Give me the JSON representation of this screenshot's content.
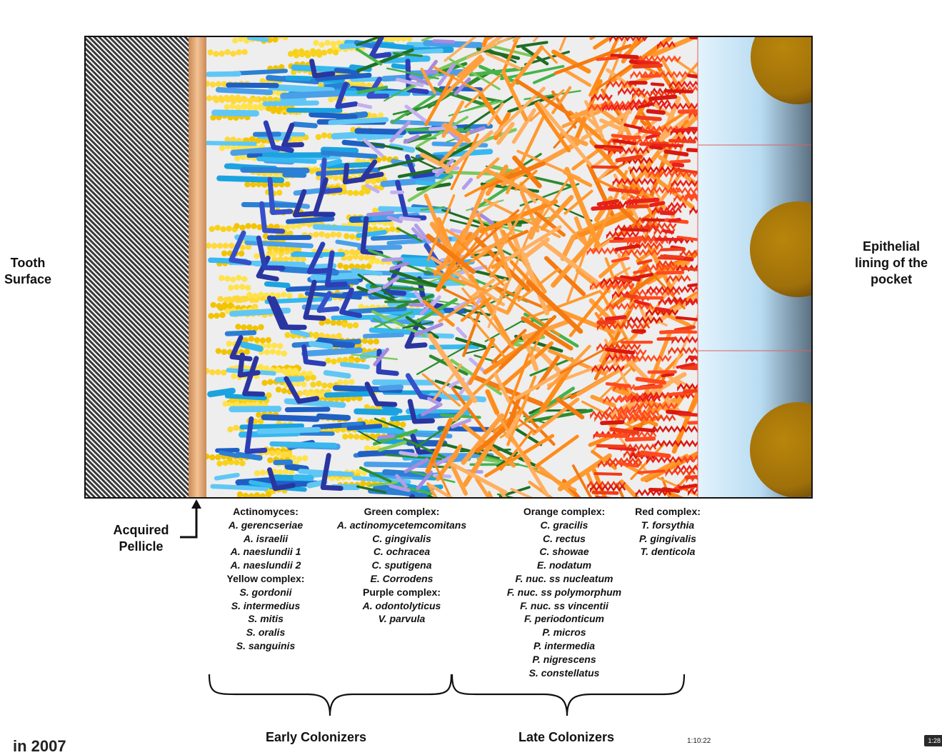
{
  "labels": {
    "tooth_surface": [
      "Tooth",
      "Surface"
    ],
    "epithelial": [
      "Epithelial",
      "lining of the",
      "pocket"
    ],
    "pellicle": [
      "Acquired",
      "Pellicle"
    ],
    "early": "Early Colonizers",
    "late": "Late Colonizers"
  },
  "lists": {
    "early": [
      {
        "text": "Actinomyces:",
        "header": true
      },
      {
        "text": "A. gerencseriae"
      },
      {
        "text": "A. israelii"
      },
      {
        "text": "A. naeslundii 1"
      },
      {
        "text": "A. naeslundii 2"
      },
      {
        "text": "Yellow  complex:",
        "header": true
      },
      {
        "text": "S. gordonii"
      },
      {
        "text": "S. intermedius"
      },
      {
        "text": "S. mitis"
      },
      {
        "text": "S. oralis"
      },
      {
        "text": "S. sanguinis"
      }
    ],
    "green": [
      {
        "text": "Green complex:",
        "header": true
      },
      {
        "text": "A. actinomycetemcomitans"
      },
      {
        "text": "C. gingivalis"
      },
      {
        "text": "C. ochracea"
      },
      {
        "text": "C. sputigena"
      },
      {
        "text": "E. Corrodens"
      },
      {
        "text": "Purple complex:",
        "header": true
      },
      {
        "text": "A. odontolyticus"
      },
      {
        "text": "V. parvula"
      }
    ],
    "orange": [
      {
        "text": "Orange complex:",
        "header": true
      },
      {
        "text": "C. gracilis"
      },
      {
        "text": "C. rectus"
      },
      {
        "text": "C. showae"
      },
      {
        "text": "E. nodatum"
      },
      {
        "text": "F. nuc. ss nucleatum"
      },
      {
        "text": "F. nuc. ss polymorphum"
      },
      {
        "text": "F. nuc. ss vincentii"
      },
      {
        "text": "F. periodonticum"
      },
      {
        "text": "P. micros"
      },
      {
        "text": "P. intermedia"
      },
      {
        "text": "P. nigrescens"
      },
      {
        "text": "S. constellatus"
      }
    ],
    "red": [
      {
        "text": "Red complex:",
        "header": true
      },
      {
        "text": "T. forsythia"
      },
      {
        "text": "P. gingivalis"
      },
      {
        "text": "T. denticola"
      }
    ]
  },
  "player": {
    "timestamp": "1:10:22",
    "badge": "1:28",
    "corner_fragment": "in 2007"
  },
  "colors": {
    "yellow": [
      "#f7d21a",
      "#ffe34d",
      "#f2c300",
      "#ffd83a"
    ],
    "blue": [
      "#1aa3e0",
      "#2b7fd4",
      "#37b8f0",
      "#4a9fe8",
      "#1f5fc4",
      "#60c7f5"
    ],
    "darkblue": [
      "#2d3fb5",
      "#3550c8",
      "#2a35a0"
    ],
    "green": [
      "#2e8b2e",
      "#46b34a",
      "#1f6e24",
      "#7cc85a"
    ],
    "purple": [
      "#b39ce8",
      "#a58ae0",
      "#c3b0f0"
    ],
    "orange": [
      "#ff8c1a",
      "#ffa040",
      "#f57a10",
      "#ffb060",
      "#ff9a30"
    ],
    "red": [
      "#e8201a",
      "#f03c18",
      "#d81810",
      "#ff4a20"
    ],
    "pellicle": "#e8a870",
    "epithelium": "#cfe8f8"
  }
}
